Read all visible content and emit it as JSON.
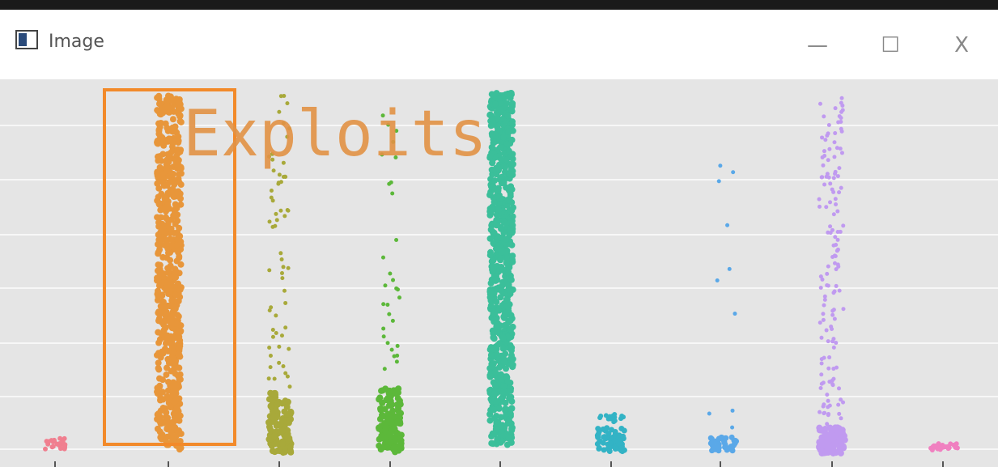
{
  "window": {
    "title": "Image",
    "controls": {
      "minimize": "—",
      "maximize": "☐",
      "close": "X"
    }
  },
  "image": {
    "annotation": "Exploits"
  }
}
